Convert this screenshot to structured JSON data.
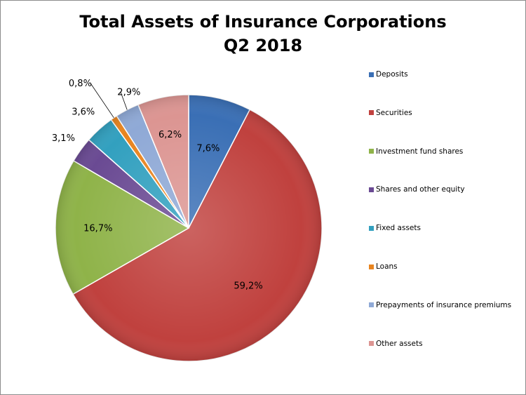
{
  "chart_data": {
    "type": "pie",
    "title": "Total Assets of Insurance Corporations",
    "subtitle": "Q2 2018",
    "categories": [
      "Deposits",
      "Securities",
      "Investment fund shares",
      "Shares and other equity",
      "Fixed assets",
      "Loans",
      "Prepayments of insurance premiums",
      "Other assets"
    ],
    "values": [
      7.6,
      59.2,
      16.7,
      3.1,
      3.6,
      0.8,
      2.9,
      6.2
    ],
    "labels": [
      "7,6%",
      "59,2%",
      "16,7%",
      "3,1%",
      "3,6%",
      "0,8%",
      "2,9%",
      "6,2%"
    ],
    "colors": [
      "#3a6fb5",
      "#c0413e",
      "#8fb349",
      "#6a4a93",
      "#32a0bf",
      "#e8841f",
      "#8fa9d6",
      "#dc9592"
    ],
    "legend_position": "right",
    "start_angle_deg": 0,
    "direction": "clockwise"
  }
}
